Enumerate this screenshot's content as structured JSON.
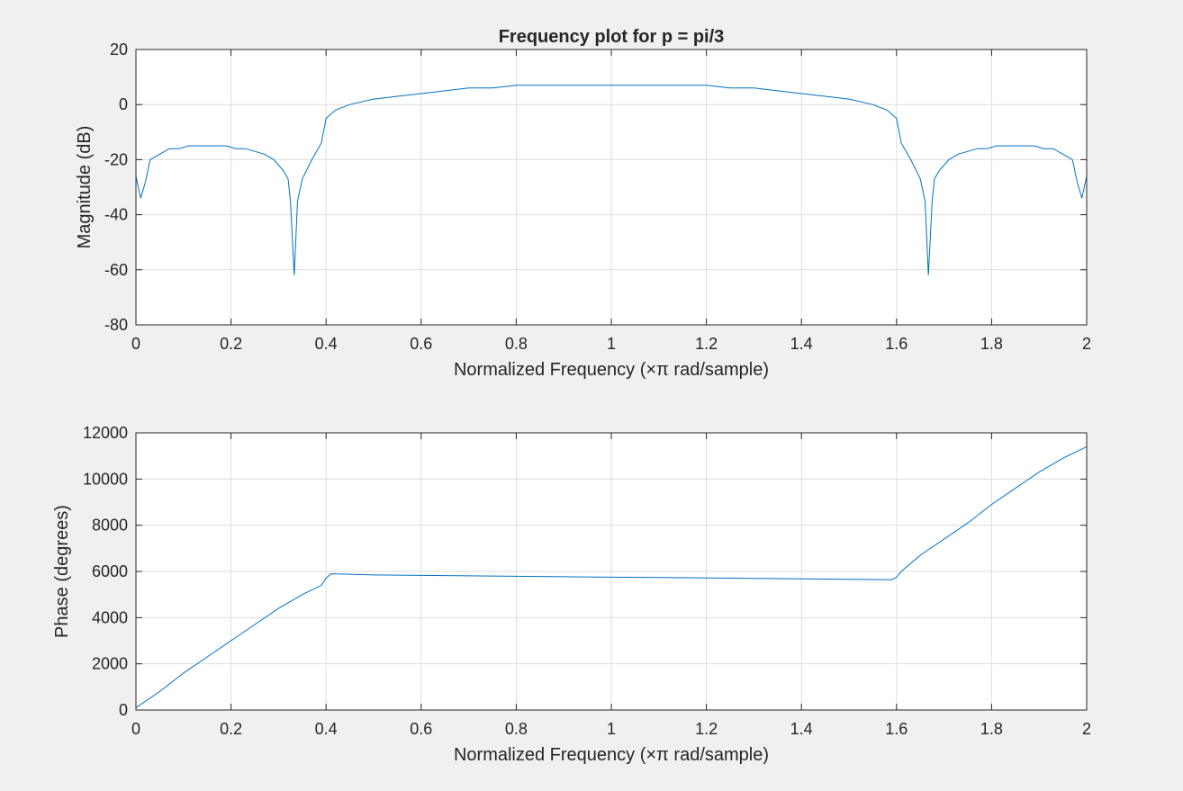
{
  "figure": {
    "background": "#f0f0f0",
    "axes_background": "#ffffff",
    "grid_color": "#dedede",
    "line_color": "#0072bd"
  },
  "chart_data": [
    {
      "type": "line",
      "title": "Frequency plot for p = pi/3",
      "xlabel": "Normalized Frequency  (×π rad/sample)",
      "ylabel": "Magnitude (dB)",
      "xlim": [
        0,
        2
      ],
      "ylim": [
        -80,
        20
      ],
      "xticks": [
        0,
        0.2,
        0.4,
        0.6,
        0.8,
        1,
        1.2,
        1.4,
        1.6,
        1.8,
        2
      ],
      "xtick_labels": [
        "0",
        "0.2",
        "0.4",
        "0.6",
        "0.8",
        "1",
        "1.2",
        "1.4",
        "1.6",
        "1.8",
        "2"
      ],
      "yticks": [
        -80,
        -60,
        -40,
        -20,
        0,
        20
      ],
      "ytick_labels": [
        "-80",
        "-60",
        "-40",
        "-20",
        "0",
        "20"
      ],
      "grid": true,
      "series": [
        {
          "x": [
            0,
            0.01,
            0.02,
            0.03,
            0.05,
            0.07,
            0.09,
            0.11,
            0.13,
            0.15,
            0.17,
            0.19,
            0.21,
            0.23,
            0.25,
            0.27,
            0.29,
            0.3,
            0.31,
            0.32,
            0.325,
            0.333,
            0.34,
            0.35,
            0.37,
            0.39,
            0.4,
            0.42,
            0.45,
            0.5,
            0.55,
            0.6,
            0.65,
            0.7,
            0.75,
            0.8,
            0.85,
            0.9,
            0.95,
            1.0,
            1.05,
            1.1,
            1.15,
            1.2,
            1.25,
            1.3,
            1.35,
            1.4,
            1.45,
            1.5,
            1.55,
            1.58,
            1.6,
            1.61,
            1.63,
            1.65,
            1.66,
            1.667,
            1.675,
            1.68,
            1.69,
            1.7,
            1.71,
            1.73,
            1.75,
            1.77,
            1.79,
            1.81,
            1.83,
            1.85,
            1.87,
            1.89,
            1.91,
            1.93,
            1.95,
            1.97,
            1.98,
            1.99,
            2.0
          ],
          "y": [
            -26,
            -34,
            -28,
            -20,
            -18,
            -16,
            -16,
            -15,
            -15,
            -15,
            -15,
            -15,
            -16,
            -16,
            -17,
            -18,
            -20,
            -22,
            -24,
            -27,
            -35,
            -62,
            -35,
            -27,
            -20,
            -14,
            -5,
            -2,
            0,
            2,
            3,
            4,
            5,
            6,
            6,
            7,
            7,
            7,
            7,
            7,
            7,
            7,
            7,
            7,
            6,
            6,
            5,
            4,
            3,
            2,
            0,
            -2,
            -5,
            -14,
            -20,
            -27,
            -35,
            -62,
            -35,
            -27,
            -24,
            -22,
            -20,
            -18,
            -17,
            -16,
            -16,
            -15,
            -15,
            -15,
            -15,
            -15,
            -16,
            -16,
            -18,
            -20,
            -28,
            -34,
            -26
          ]
        }
      ]
    },
    {
      "type": "line",
      "title": "",
      "xlabel": "Normalized Frequency  (×π rad/sample)",
      "ylabel": "Phase (degrees)",
      "xlim": [
        0,
        2
      ],
      "ylim": [
        0,
        12000
      ],
      "xticks": [
        0,
        0.2,
        0.4,
        0.6,
        0.8,
        1,
        1.2,
        1.4,
        1.6,
        1.8,
        2
      ],
      "xtick_labels": [
        "0",
        "0.2",
        "0.4",
        "0.6",
        "0.8",
        "1",
        "1.2",
        "1.4",
        "1.6",
        "1.8",
        "2"
      ],
      "yticks": [
        0,
        2000,
        4000,
        6000,
        8000,
        10000,
        12000
      ],
      "ytick_labels": [
        "0",
        "2000",
        "4000",
        "6000",
        "8000",
        "10000",
        "12000"
      ],
      "grid": true,
      "series": [
        {
          "x": [
            0,
            0.05,
            0.1,
            0.15,
            0.2,
            0.25,
            0.3,
            0.35,
            0.39,
            0.4,
            0.41,
            0.45,
            0.5,
            0.6,
            0.7,
            0.8,
            0.9,
            1.0,
            1.1,
            1.2,
            1.3,
            1.4,
            1.5,
            1.55,
            1.59,
            1.6,
            1.61,
            1.65,
            1.7,
            1.75,
            1.8,
            1.85,
            1.9,
            1.95,
            2.0
          ],
          "y": [
            100,
            800,
            1600,
            2300,
            3000,
            3700,
            4400,
            5000,
            5400,
            5700,
            5900,
            5880,
            5850,
            5830,
            5810,
            5790,
            5770,
            5750,
            5740,
            5720,
            5700,
            5680,
            5660,
            5650,
            5640,
            5750,
            6000,
            6700,
            7400,
            8100,
            8900,
            9600,
            10300,
            10900,
            11400
          ]
        }
      ]
    }
  ]
}
